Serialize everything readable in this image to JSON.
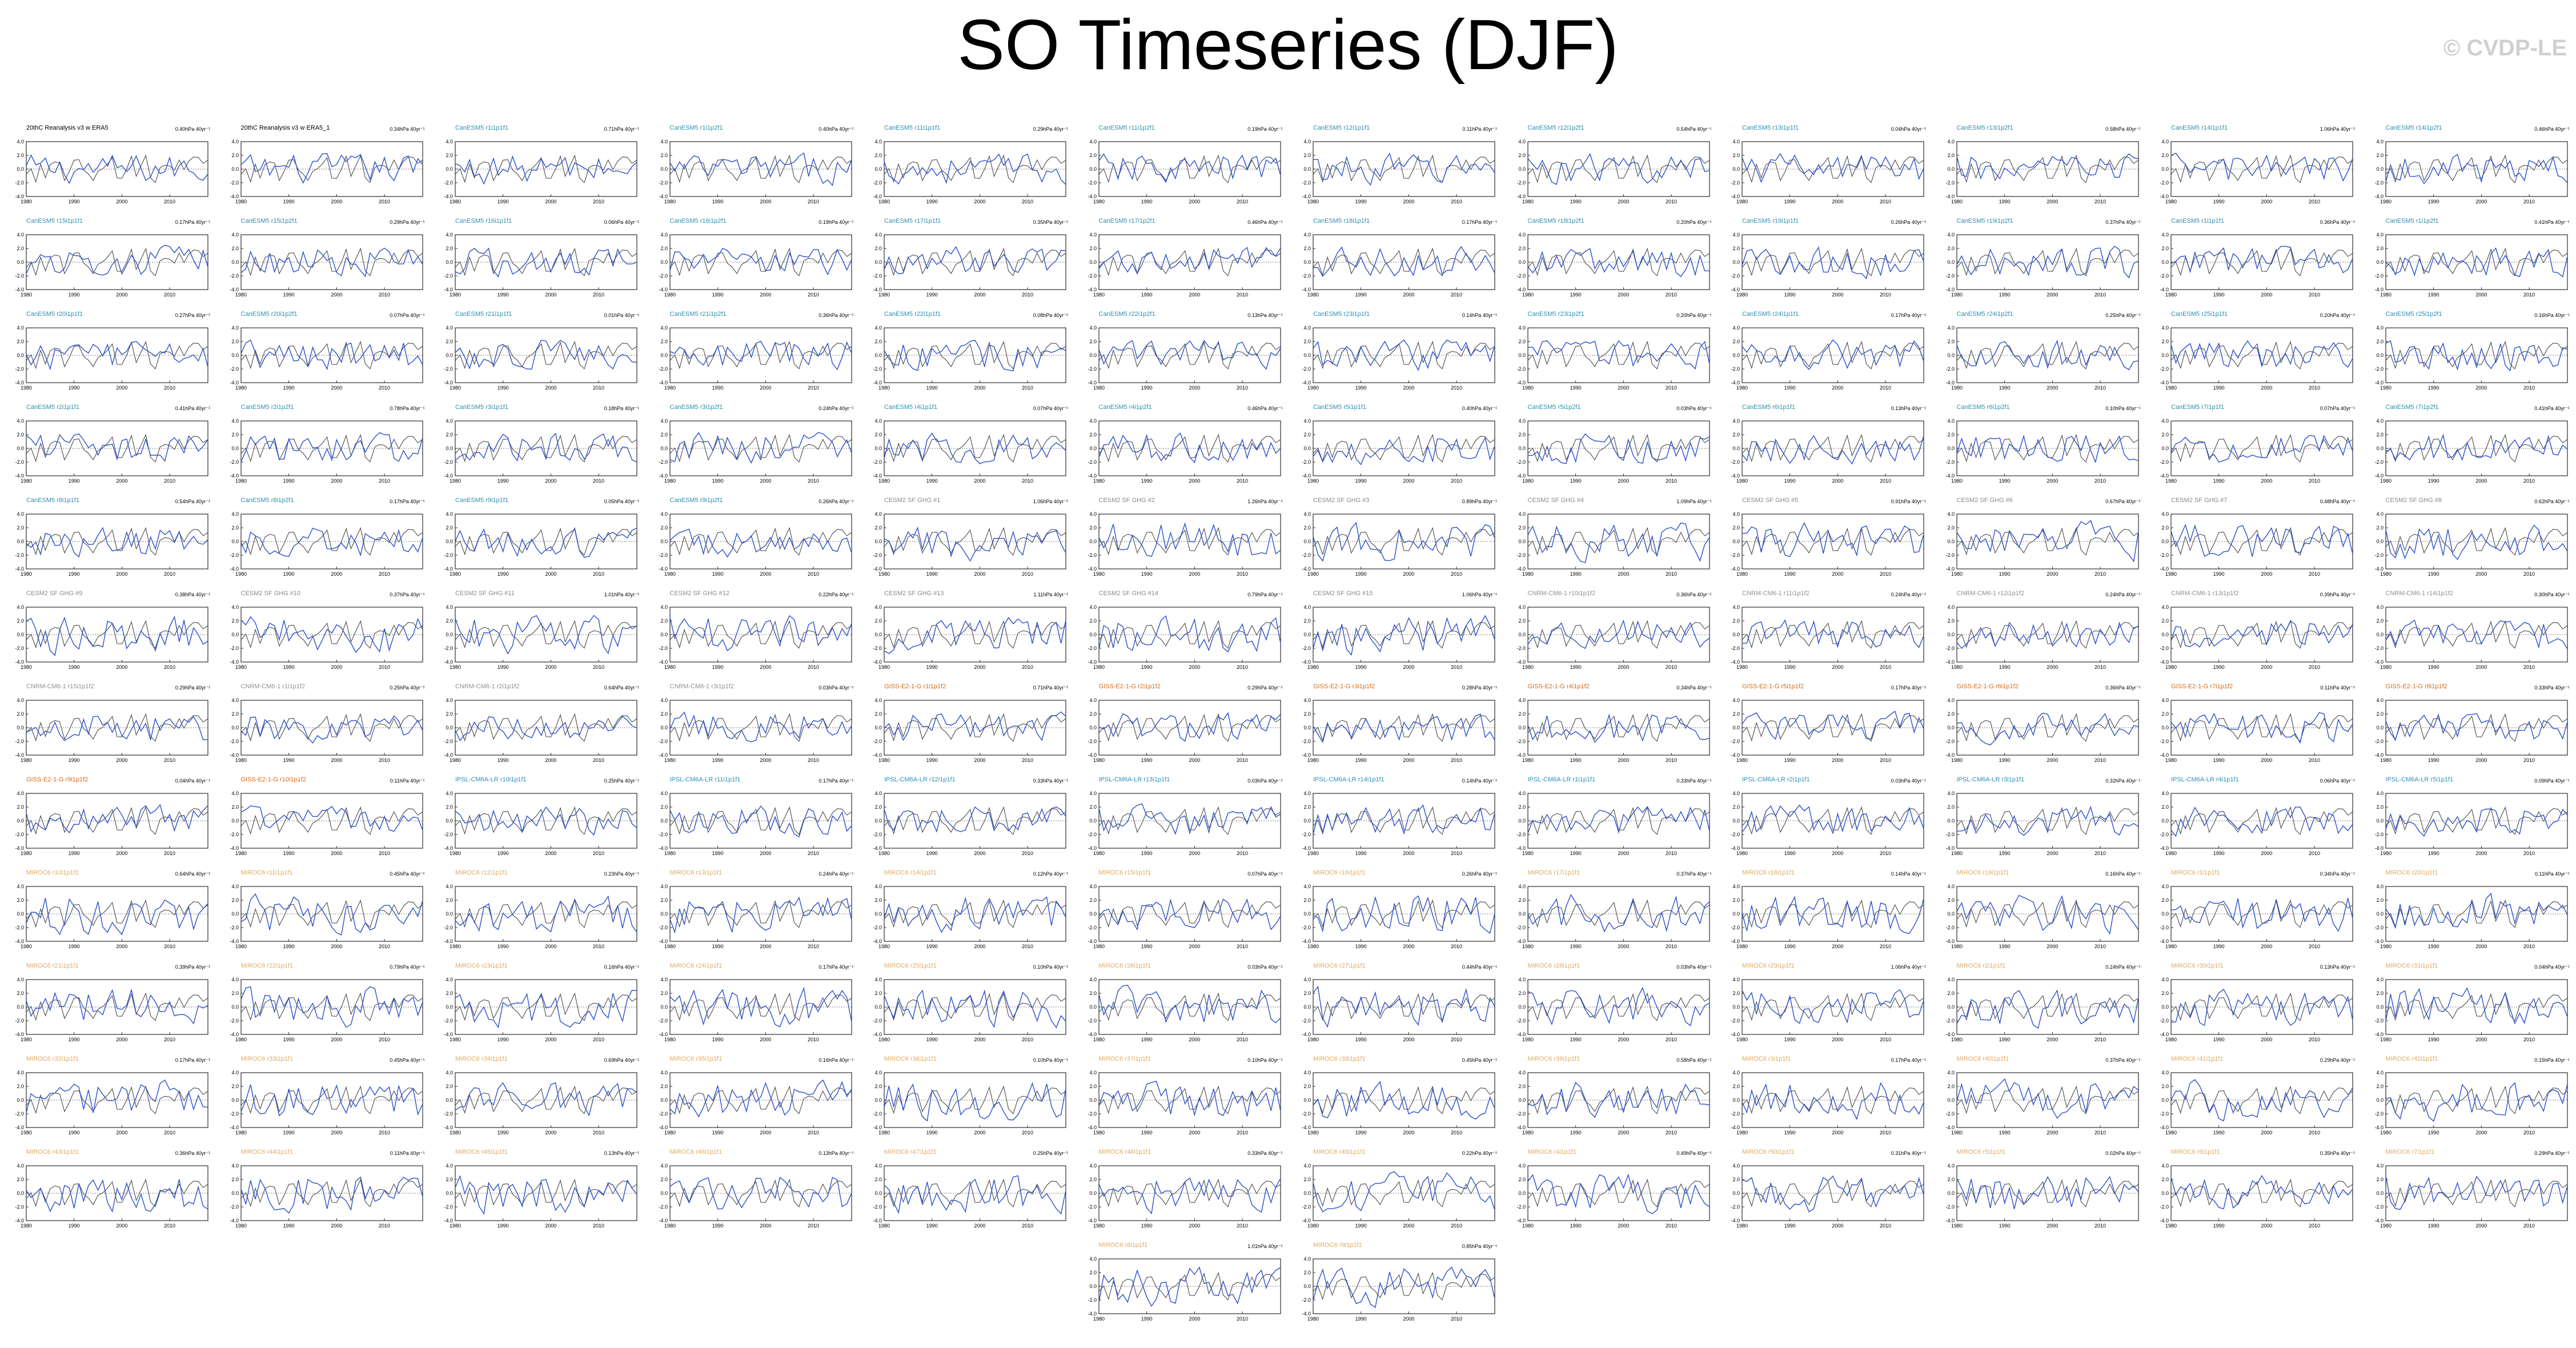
{
  "page": {
    "title": "SO Timeseries (DJF)",
    "watermark": "© CVDP-LE"
  },
  "colors": {
    "observed_line": "#4a4a4a",
    "model_line": "#2b4fc9",
    "title_obs": "#000000",
    "title_cesm": "#2e8fae",
    "title_cesm2": "#8a8a8a",
    "title_cnrm": "#909090",
    "title_giss": "#d66c18",
    "title_ipsl": "#2f8fb4",
    "title_miroc": "#e0aa60"
  },
  "chart_data": {
    "type": "line",
    "layout": "small-multiples",
    "ylim": [
      -4.0,
      4.0
    ],
    "yticks": [
      "4.0",
      "2.0",
      "0.0",
      "-2.0",
      "-4.0"
    ],
    "xlim": [
      1980,
      2018
    ],
    "xticks": [
      "1980",
      "1990",
      "2000",
      "2010"
    ],
    "series_names": [
      "observations",
      "ensemble member"
    ],
    "panels": [
      {
        "title": "20thC Reanalysis v3 w ERA5",
        "trend": "0.40hPa 40yr⁻¹",
        "group": "obs"
      },
      {
        "title": "20thC Reanalysis v3 w ERA5_1",
        "trend": "0.34hPa 40yr⁻¹",
        "group": "obs"
      },
      {
        "title": "CanESM5 r1i1p1f1",
        "trend": "0.71hPa 40yr⁻¹",
        "group": "cesm"
      },
      {
        "title": "CanESM5 r1i1p2f1",
        "trend": "0.40hPa 40yr⁻¹",
        "group": "cesm"
      },
      {
        "title": "CanESM5 r11i1p1f1",
        "trend": "0.29hPa 40yr⁻¹",
        "group": "cesm"
      },
      {
        "title": "CanESM5 r11i1p2f1",
        "trend": "0.19hPa 40yr⁻¹",
        "group": "cesm"
      },
      {
        "title": "CanESM5 r12i1p1f1",
        "trend": "0.11hPa 40yr⁻¹",
        "group": "cesm"
      },
      {
        "title": "CanESM5 r12i1p2f1",
        "trend": "0.54hPa 40yr⁻¹",
        "group": "cesm"
      },
      {
        "title": "CanESM5 r13i1p1f1",
        "trend": "0.04hPa 40yr⁻¹",
        "group": "cesm"
      },
      {
        "title": "CanESM5 r13i1p2f1",
        "trend": "0.58hPa 40yr⁻¹",
        "group": "cesm"
      },
      {
        "title": "CanESM5 r14i1p1f1",
        "trend": "1.06hPa 40yr⁻¹",
        "group": "cesm"
      },
      {
        "title": "CanESM5 r14i1p2f1",
        "trend": "0.46hPa 40yr⁻¹",
        "group": "cesm"
      },
      {
        "title": "CanESM5 r15i1p1f1",
        "trend": "0.17hPa 40yr⁻¹",
        "group": "cesm"
      },
      {
        "title": "CanESM5 r15i1p2f1",
        "trend": "0.29hPa 40yr⁻¹",
        "group": "cesm"
      },
      {
        "title": "CanESM5 r16i1p1f1",
        "trend": "0.06hPa 40yr⁻¹",
        "group": "cesm"
      },
      {
        "title": "CanESM5 r16i1p2f1",
        "trend": "0.19hPa 40yr⁻¹",
        "group": "cesm"
      },
      {
        "title": "CanESM5 r17i1p1f1",
        "trend": "0.35hPa 40yr⁻¹",
        "group": "cesm"
      },
      {
        "title": "CanESM5 r17i1p2f1",
        "trend": "0.46hPa 40yr⁻¹",
        "group": "cesm"
      },
      {
        "title": "CanESM5 r18i1p1f1",
        "trend": "0.17hPa 40yr⁻¹",
        "group": "cesm"
      },
      {
        "title": "CanESM5 r18i1p2f1",
        "trend": "0.20hPa 40yr⁻¹",
        "group": "cesm"
      },
      {
        "title": "CanESM5 r19i1p1f1",
        "trend": "0.26hPa 40yr⁻¹",
        "group": "cesm"
      },
      {
        "title": "CanESM5 r19i1p2f1",
        "trend": "0.37hPa 40yr⁻¹",
        "group": "cesm"
      },
      {
        "title": "CanESM5 r1i1p1f1",
        "trend": "0.36hPa 40yr⁻¹",
        "group": "cesm"
      },
      {
        "title": "CanESM5 r1i1p2f1",
        "trend": "0.41hPa 40yr⁻¹",
        "group": "cesm"
      },
      {
        "title": "CanESM5 r20i1p1f1",
        "trend": "0.27hPa 40yr⁻¹",
        "group": "cesm"
      },
      {
        "title": "CanESM5 r20i1p2f1",
        "trend": "0.07hPa 40yr⁻¹",
        "group": "cesm"
      },
      {
        "title": "CanESM5 r21i1p1f1",
        "trend": "0.01hPa 40yr⁻¹",
        "group": "cesm"
      },
      {
        "title": "CanESM5 r21i1p2f1",
        "trend": "0.36hPa 40yr⁻¹",
        "group": "cesm"
      },
      {
        "title": "CanESM5 r22i1p1f1",
        "trend": "0.08hPa 40yr⁻¹",
        "group": "cesm"
      },
      {
        "title": "CanESM5 r22i1p2f1",
        "trend": "0.13hPa 40yr⁻¹",
        "group": "cesm"
      },
      {
        "title": "CanESM5 r23i1p1f1",
        "trend": "0.14hPa 40yr⁻¹",
        "group": "cesm"
      },
      {
        "title": "CanESM5 r23i1p2f1",
        "trend": "0.20hPa 40yr⁻¹",
        "group": "cesm"
      },
      {
        "title": "CanESM5 r24i1p1f1",
        "trend": "0.17hPa 40yr⁻¹",
        "group": "cesm"
      },
      {
        "title": "CanESM5 r24i1p2f1",
        "trend": "0.25hPa 40yr⁻¹",
        "group": "cesm"
      },
      {
        "title": "CanESM5 r25i1p1f1",
        "trend": "0.20hPa 40yr⁻¹",
        "group": "cesm"
      },
      {
        "title": "CanESM5 r25i1p2f1",
        "trend": "0.16hPa 40yr⁻¹",
        "group": "cesm"
      },
      {
        "title": "CanESM5 r2i1p1f1",
        "trend": "0.41hPa 40yr⁻¹",
        "group": "cesm"
      },
      {
        "title": "CanESM5 r2i1p2f1",
        "trend": "0.78hPa 40yr⁻¹",
        "group": "cesm"
      },
      {
        "title": "CanESM5 r3i1p1f1",
        "trend": "0.18hPa 40yr⁻¹",
        "group": "cesm"
      },
      {
        "title": "CanESM5 r3i1p2f1",
        "trend": "0.24hPa 40yr⁻¹",
        "group": "cesm"
      },
      {
        "title": "CanESM5 r4i1p1f1",
        "trend": "0.07hPa 40yr⁻¹",
        "group": "cesm"
      },
      {
        "title": "CanESM5 r4i1p2f1",
        "trend": "0.46hPa 40yr⁻¹",
        "group": "cesm"
      },
      {
        "title": "CanESM5 r5i1p1f1",
        "trend": "0.40hPa 40yr⁻¹",
        "group": "cesm"
      },
      {
        "title": "CanESM5 r5i1p2f1",
        "trend": "0.03hPa 40yr⁻¹",
        "group": "cesm"
      },
      {
        "title": "CanESM5 r6i1p1f1",
        "trend": "0.13hPa 40yr⁻¹",
        "group": "cesm"
      },
      {
        "title": "CanESM5 r6i1p2f1",
        "trend": "0.10hPa 40yr⁻¹",
        "group": "cesm"
      },
      {
        "title": "CanESM5 r7i1p1f1",
        "trend": "0.07hPa 40yr⁻¹",
        "group": "cesm"
      },
      {
        "title": "CanESM5 r7i1p2f1",
        "trend": "0.41hPa 40yr⁻¹",
        "group": "cesm"
      },
      {
        "title": "CanESM5 r8i1p1f1",
        "trend": "0.54hPa 40yr⁻¹",
        "group": "cesm"
      },
      {
        "title": "CanESM5 r8i1p2f1",
        "trend": "0.17hPa 40yr⁻¹",
        "group": "cesm"
      },
      {
        "title": "CanESM5 r9i1p1f1",
        "trend": "0.05hPa 40yr⁻¹",
        "group": "cesm"
      },
      {
        "title": "CanESM5 r9i1p2f1",
        "trend": "0.26hPa 40yr⁻¹",
        "group": "cesm"
      },
      {
        "title": "CESM2 SF GHG #1",
        "trend": "1.06hPa 40yr⁻¹",
        "group": "cesm2"
      },
      {
        "title": "CESM2 SF GHG #2",
        "trend": "1.26hPa 40yr⁻¹",
        "group": "cesm2"
      },
      {
        "title": "CESM2 SF GHG #3",
        "trend": "0.89hPa 40yr⁻¹",
        "group": "cesm2"
      },
      {
        "title": "CESM2 SF GHG #4",
        "trend": "1.09hPa 40yr⁻¹",
        "group": "cesm2"
      },
      {
        "title": "CESM2 SF GHG #5",
        "trend": "0.91hPa 40yr⁻¹",
        "group": "cesm2"
      },
      {
        "title": "CESM2 SF GHG #6",
        "trend": "0.67hPa 40yr⁻¹",
        "group": "cesm2"
      },
      {
        "title": "CESM2 SF GHG #7",
        "trend": "0.48hPa 40yr⁻¹",
        "group": "cesm2"
      },
      {
        "title": "CESM2 SF GHG #8",
        "trend": "0.62hPa 40yr⁻¹",
        "group": "cesm2"
      },
      {
        "title": "CESM2 SF GHG #9",
        "trend": "0.38hPa 40yr⁻¹",
        "group": "cesm2"
      },
      {
        "title": "CESM2 SF GHG #10",
        "trend": "0.37hPa 40yr⁻¹",
        "group": "cesm2"
      },
      {
        "title": "CESM2 SF GHG #11",
        "trend": "1.01hPa 40yr⁻¹",
        "group": "cesm2"
      },
      {
        "title": "CESM2 SF GHG #12",
        "trend": "0.22hPa 40yr⁻¹",
        "group": "cesm2"
      },
      {
        "title": "CESM2 SF GHG #13",
        "trend": "1.11hPa 40yr⁻¹",
        "group": "cesm2"
      },
      {
        "title": "CESM2 SF GHG #14",
        "trend": "0.79hPa 40yr⁻¹",
        "group": "cesm2"
      },
      {
        "title": "CESM2 SF GHG #15",
        "trend": "1.06hPa 40yr⁻¹",
        "group": "cesm2"
      },
      {
        "title": "CNRM-CM6-1 r10i1p1f2",
        "trend": "0.36hPa 40yr⁻¹",
        "group": "cnrm"
      },
      {
        "title": "CNRM-CM6-1 r11i1p1f2",
        "trend": "0.24hPa 40yr⁻¹",
        "group": "cnrm"
      },
      {
        "title": "CNRM-CM6-1 r12i1p1f2",
        "trend": "0.24hPa 40yr⁻¹",
        "group": "cnrm"
      },
      {
        "title": "CNRM-CM6-1 r13i1p1f2",
        "trend": "0.39hPa 40yr⁻¹",
        "group": "cnrm"
      },
      {
        "title": "CNRM-CM6-1 r14i1p1f2",
        "trend": "0.30hPa 40yr⁻¹",
        "group": "cnrm"
      },
      {
        "title": "CNRM-CM6-1 r15i1p1f2",
        "trend": "0.29hPa 40yr⁻¹",
        "group": "cnrm"
      },
      {
        "title": "CNRM-CM6-1 r1i1p1f2",
        "trend": "0.25hPa 40yr⁻¹",
        "group": "cnrm"
      },
      {
        "title": "CNRM-CM6-1 r2i1p1f2",
        "trend": "0.64hPa 40yr⁻¹",
        "group": "cnrm"
      },
      {
        "title": "CNRM-CM6-1 r3i1p1f2",
        "trend": "0.03hPa 40yr⁻¹",
        "group": "cnrm"
      },
      {
        "title": "GISS-E2-1-G r1i1p1f2",
        "trend": "0.71hPa 40yr⁻¹",
        "group": "giss"
      },
      {
        "title": "GISS-E2-1-G r2i1p1f2",
        "trend": "0.29hPa 40yr⁻¹",
        "group": "giss"
      },
      {
        "title": "GISS-E2-1-G r3i1p1f2",
        "trend": "0.28hPa 40yr⁻¹",
        "group": "giss"
      },
      {
        "title": "GISS-E2-1-G r4i1p1f2",
        "trend": "0.34hPa 40yr⁻¹",
        "group": "giss"
      },
      {
        "title": "GISS-E2-1-G r5i1p1f2",
        "trend": "0.17hPa 40yr⁻¹",
        "group": "giss"
      },
      {
        "title": "GISS-E2-1-G r6i1p1f2",
        "trend": "0.36hPa 40yr⁻¹",
        "group": "giss"
      },
      {
        "title": "GISS-E2-1-G r7i1p1f2",
        "trend": "0.11hPa 40yr⁻¹",
        "group": "giss"
      },
      {
        "title": "GISS-E2-1-G r8i1p1f2",
        "trend": "0.33hPa 40yr⁻¹",
        "group": "giss"
      },
      {
        "title": "GISS-E2-1-G r9i1p1f2",
        "trend": "0.04hPa 40yr⁻¹",
        "group": "giss"
      },
      {
        "title": "GISS-E2-1-G r10i1p1f2",
        "trend": "0.11hPa 40yr⁻¹",
        "group": "giss"
      },
      {
        "title": "IPSL-CM6A-LR r10i1p1f1",
        "trend": "0.25hPa 40yr⁻¹",
        "group": "ipsl"
      },
      {
        "title": "IPSL-CM6A-LR r11i1p1f1",
        "trend": "0.17hPa 40yr⁻¹",
        "group": "ipsl"
      },
      {
        "title": "IPSL-CM6A-LR r12i1p1f1",
        "trend": "0.33hPa 40yr⁻¹",
        "group": "ipsl"
      },
      {
        "title": "IPSL-CM6A-LR r13i1p1f1",
        "trend": "0.03hPa 40yr⁻¹",
        "group": "ipsl"
      },
      {
        "title": "IPSL-CM6A-LR r14i1p1f1",
        "trend": "0.14hPa 40yr⁻¹",
        "group": "ipsl"
      },
      {
        "title": "IPSL-CM6A-LR r1i1p1f1",
        "trend": "0.33hPa 40yr⁻¹",
        "group": "ipsl"
      },
      {
        "title": "IPSL-CM6A-LR r2i1p1f1",
        "trend": "0.03hPa 40yr⁻¹",
        "group": "ipsl"
      },
      {
        "title": "IPSL-CM6A-LR r3i1p1f1",
        "trend": "0.32hPa 40yr⁻¹",
        "group": "ipsl"
      },
      {
        "title": "IPSL-CM6A-LR r4i1p1f1",
        "trend": "0.06hPa 40yr⁻¹",
        "group": "ipsl"
      },
      {
        "title": "IPSL-CM6A-LR r5i1p1f1",
        "trend": "0.09hPa 40yr⁻¹",
        "group": "ipsl"
      },
      {
        "title": "MIROC6 r10i1p1f1",
        "trend": "0.64hPa 40yr⁻¹",
        "group": "miroc"
      },
      {
        "title": "MIROC6 r11i1p1f1",
        "trend": "0.45hPa 40yr⁻¹",
        "group": "miroc"
      },
      {
        "title": "MIROC6 r12i1p1f1",
        "trend": "0.23hPa 40yr⁻¹",
        "group": "miroc"
      },
      {
        "title": "MIROC6 r13i1p1f1",
        "trend": "0.24hPa 40yr⁻¹",
        "group": "miroc"
      },
      {
        "title": "MIROC6 r14i1p1f1",
        "trend": "0.12hPa 40yr⁻¹",
        "group": "miroc"
      },
      {
        "title": "MIROC6 r15i1p1f1",
        "trend": "0.07hPa 40yr⁻¹",
        "group": "miroc"
      },
      {
        "title": "MIROC6 r16i1p1f1",
        "trend": "0.26hPa 40yr⁻¹",
        "group": "miroc"
      },
      {
        "title": "MIROC6 r17i1p1f1",
        "trend": "0.37hPa 40yr⁻¹",
        "group": "miroc"
      },
      {
        "title": "MIROC6 r18i1p1f1",
        "trend": "0.14hPa 40yr⁻¹",
        "group": "miroc"
      },
      {
        "title": "MIROC6 r19i1p1f1",
        "trend": "0.16hPa 40yr⁻¹",
        "group": "miroc"
      },
      {
        "title": "MIROC6 r1i1p1f1",
        "trend": "0.34hPa 40yr⁻¹",
        "group": "miroc"
      },
      {
        "title": "MIROC6 r20i1p1f1",
        "trend": "0.11hPa 40yr⁻¹",
        "group": "miroc"
      },
      {
        "title": "MIROC6 r21i1p1f1",
        "trend": "0.39hPa 40yr⁻¹",
        "group": "miroc"
      },
      {
        "title": "MIROC6 r22i1p1f1",
        "trend": "0.79hPa 40yr⁻¹",
        "group": "miroc"
      },
      {
        "title": "MIROC6 r23i1p1f1",
        "trend": "0.16hPa 40yr⁻¹",
        "group": "miroc"
      },
      {
        "title": "MIROC6 r24i1p1f1",
        "trend": "0.17hPa 40yr⁻¹",
        "group": "miroc"
      },
      {
        "title": "MIROC6 r25i1p1f1",
        "trend": "0.10hPa 40yr⁻¹",
        "group": "miroc"
      },
      {
        "title": "MIROC6 r26i1p1f1",
        "trend": "0.03hPa 40yr⁻¹",
        "group": "miroc"
      },
      {
        "title": "MIROC6 r27i1p1f1",
        "trend": "0.44hPa 40yr⁻¹",
        "group": "miroc"
      },
      {
        "title": "MIROC6 r28i1p1f1",
        "trend": "0.03hPa 40yr⁻¹",
        "group": "miroc"
      },
      {
        "title": "MIROC6 r29i1p1f1",
        "trend": "1.06hPa 40yr⁻¹",
        "group": "miroc"
      },
      {
        "title": "MIROC6 r2i1p1f1",
        "trend": "0.24hPa 40yr⁻¹",
        "group": "miroc"
      },
      {
        "title": "MIROC6 r30i1p1f1",
        "trend": "0.13hPa 40yr⁻¹",
        "group": "miroc"
      },
      {
        "title": "MIROC6 r31i1p1f1",
        "trend": "0.04hPa 40yr⁻¹",
        "group": "miroc"
      },
      {
        "title": "MIROC6 r32i1p1f1",
        "trend": "0.17hPa 40yr⁻¹",
        "group": "miroc"
      },
      {
        "title": "MIROC6 r33i1p1f1",
        "trend": "0.45hPa 40yr⁻¹",
        "group": "miroc"
      },
      {
        "title": "MIROC6 r34i1p1f1",
        "trend": "0.69hPa 40yr⁻¹",
        "group": "miroc"
      },
      {
        "title": "MIROC6 r35i1p1f1",
        "trend": "0.16hPa 40yr⁻¹",
        "group": "miroc"
      },
      {
        "title": "MIROC6 r36i1p1f1",
        "trend": "0.10hPa 40yr⁻¹",
        "group": "miroc"
      },
      {
        "title": "MIROC6 r37i1p1f1",
        "trend": "0.10hPa 40yr⁻¹",
        "group": "miroc"
      },
      {
        "title": "MIROC6 r38i1p1f1",
        "trend": "0.45hPa 40yr⁻¹",
        "group": "miroc"
      },
      {
        "title": "MIROC6 r39i1p1f1",
        "trend": "0.58hPa 40yr⁻¹",
        "group": "miroc"
      },
      {
        "title": "MIROC6 r3i1p1f1",
        "trend": "0.17hPa 40yr⁻¹",
        "group": "miroc"
      },
      {
        "title": "MIROC6 r40i1p1f1",
        "trend": "0.37hPa 40yr⁻¹",
        "group": "miroc"
      },
      {
        "title": "MIROC6 r41i1p1f1",
        "trend": "0.29hPa 40yr⁻¹",
        "group": "miroc"
      },
      {
        "title": "MIROC6 r42i1p1f1",
        "trend": "0.15hPa 40yr⁻¹",
        "group": "miroc"
      },
      {
        "title": "MIROC6 r43i1p1f1",
        "trend": "0.36hPa 40yr⁻¹",
        "group": "miroc"
      },
      {
        "title": "MIROC6 r44i1p1f1",
        "trend": "0.11hPa 40yr⁻¹",
        "group": "miroc"
      },
      {
        "title": "MIROC6 r45i1p1f1",
        "trend": "0.13hPa 40yr⁻¹",
        "group": "miroc"
      },
      {
        "title": "MIROC6 r46i1p1f1",
        "trend": "0.13hPa 40yr⁻¹",
        "group": "miroc"
      },
      {
        "title": "MIROC6 r47i1p1f1",
        "trend": "0.25hPa 40yr⁻¹",
        "group": "miroc"
      },
      {
        "title": "MIROC6 r48i1p1f1",
        "trend": "0.33hPa 40yr⁻¹",
        "group": "miroc"
      },
      {
        "title": "MIROC6 r49i1p1f1",
        "trend": "0.22hPa 40yr⁻¹",
        "group": "miroc"
      },
      {
        "title": "MIROC6 r4i1p1f1",
        "trend": "0.49hPa 40yr⁻¹",
        "group": "miroc"
      },
      {
        "title": "MIROC6 r50i1p1f1",
        "trend": "0.31hPa 40yr⁻¹",
        "group": "miroc"
      },
      {
        "title": "MIROC6 r5i1p1f1",
        "trend": "0.02hPa 40yr⁻¹",
        "group": "miroc"
      },
      {
        "title": "MIROC6 r6i1p1f1",
        "trend": "0.35hPa 40yr⁻¹",
        "group": "miroc"
      },
      {
        "title": "MIROC6 r7i1p1f1",
        "trend": "0.29hPa 40yr⁻¹",
        "group": "miroc"
      },
      {
        "title": "MIROC6 r8i1p1f1",
        "trend": "1.01hPa 40yr⁻¹",
        "group": "miroc"
      },
      {
        "title": "MIROC6 r9i1p1f1",
        "trend": "0.85hPa 40yr⁻¹",
        "group": "miroc"
      }
    ]
  }
}
